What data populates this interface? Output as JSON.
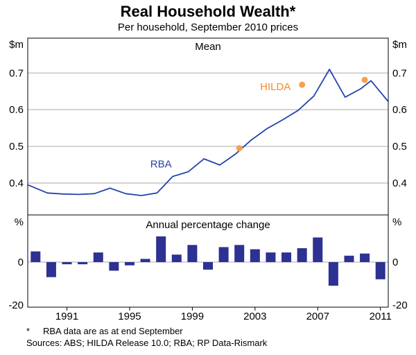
{
  "header": {
    "title": "Real Household Wealth*",
    "subtitle": "Per household, September 2010 prices"
  },
  "footer": {
    "footnote_marker": "*",
    "footnote_text": "RBA data are as at end September",
    "sources": "Sources: ABS; HILDA Release 10.0; RBA; RP Data-Rismark"
  },
  "colors": {
    "line_blue": "#2443ad",
    "bar_blue": "#2c3192",
    "hilda_dot": "#f9a04c",
    "hilda_text": "#f68b1f",
    "grid_gray": "#aaaaaa",
    "axis_black": "#000000"
  },
  "chart_data": [
    {
      "type": "line",
      "panel": "upper",
      "title": "Mean",
      "unit": "$m",
      "xlim": [
        1988.5,
        2011.5
      ],
      "xticks": [
        "1991",
        "1995",
        "1999",
        "2003",
        "2007",
        "2011"
      ],
      "ylim": [
        0.313,
        0.795
      ],
      "yticks": [
        "0.4",
        "0.5",
        "0.6",
        "0.7"
      ],
      "grid": true,
      "legend_position": "inline-labels",
      "series": [
        {
          "name": "RBA",
          "type": "line",
          "color_key": "line_blue",
          "points": [
            [
              1988.5,
              0.395
            ],
            [
              1989.75,
              0.373
            ],
            [
              1990.75,
              0.37
            ],
            [
              1991.75,
              0.369
            ],
            [
              1992.75,
              0.371
            ],
            [
              1993.75,
              0.386
            ],
            [
              1994.75,
              0.371
            ],
            [
              1995.75,
              0.366
            ],
            [
              1996.75,
              0.373
            ],
            [
              1997.75,
              0.418
            ],
            [
              1998.75,
              0.431
            ],
            [
              1999.75,
              0.466
            ],
            [
              2000.75,
              0.449
            ],
            [
              2001.75,
              0.479
            ],
            [
              2002.75,
              0.517
            ],
            [
              2003.75,
              0.548
            ],
            [
              2004.75,
              0.572
            ],
            [
              2005.75,
              0.598
            ],
            [
              2006.75,
              0.637
            ],
            [
              2007.75,
              0.71
            ],
            [
              2008.75,
              0.634
            ],
            [
              2009.75,
              0.657
            ],
            [
              2010.4,
              0.679
            ],
            [
              2011.5,
              0.622
            ]
          ]
        },
        {
          "name": "HILDA",
          "type": "scatter",
          "color_key": "hilda_dot",
          "points": [
            [
              2002,
              0.495
            ],
            [
              2006,
              0.668
            ],
            [
              2010,
              0.681
            ]
          ]
        }
      ],
      "annotations": [
        {
          "text": "RBA",
          "x": 1997.0,
          "y": 0.452,
          "color_key": "line_blue"
        },
        {
          "text": "HILDA",
          "x": 2004.3,
          "y": 0.663,
          "color_key": "hilda_text"
        }
      ]
    },
    {
      "type": "bar",
      "panel": "lower",
      "title": "Annual percentage change",
      "unit": "%",
      "ylim": [
        -21,
        22
      ],
      "yticks": [
        "0",
        "-20"
      ],
      "color_key": "bar_blue",
      "categories": [
        1989,
        1990,
        1991,
        1992,
        1993,
        1994,
        1995,
        1996,
        1997,
        1998,
        1999,
        2000,
        2001,
        2002,
        2003,
        2004,
        2005,
        2006,
        2007,
        2008,
        2009,
        2010,
        2011
      ],
      "values": [
        5,
        -7,
        -1,
        -1,
        4.5,
        -4,
        -1.5,
        1.5,
        12,
        3.5,
        8,
        -3.5,
        7,
        8,
        6,
        4.5,
        4.5,
        6.5,
        11.5,
        -11,
        3,
        4,
        -8
      ]
    }
  ]
}
